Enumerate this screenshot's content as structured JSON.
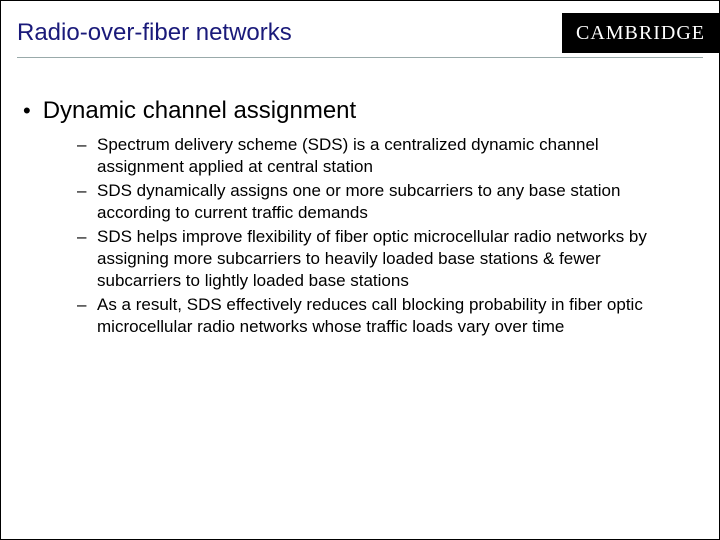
{
  "header": {
    "title": "Radio-over-fiber networks",
    "logo_text": "CAMBRIDGE"
  },
  "colors": {
    "title_color": "#1a1a7a",
    "logo_bg": "#000000",
    "logo_fg": "#ffffff",
    "text_color": "#000000",
    "rule_color": "#99aaaa",
    "background": "#ffffff"
  },
  "typography": {
    "title_fontsize": 24,
    "heading_fontsize": 24,
    "body_fontsize": 17,
    "font_family": "Comic Sans MS"
  },
  "content": {
    "heading": "Dynamic channel assignment",
    "bullet_marker": "•",
    "sub_marker": "–",
    "items": [
      "Spectrum delivery scheme (SDS) is a centralized dynamic channel assignment applied at central station",
      "SDS dynamically assigns one or more subcarriers to any base station according to current traffic demands",
      "SDS helps improve flexibility of fiber optic microcellular radio networks by assigning more subcarriers to heavily loaded base stations & fewer subcarriers to lightly loaded base stations",
      "As a result, SDS effectively reduces call blocking probability in fiber optic microcellular radio networks whose traffic loads vary over time"
    ]
  }
}
